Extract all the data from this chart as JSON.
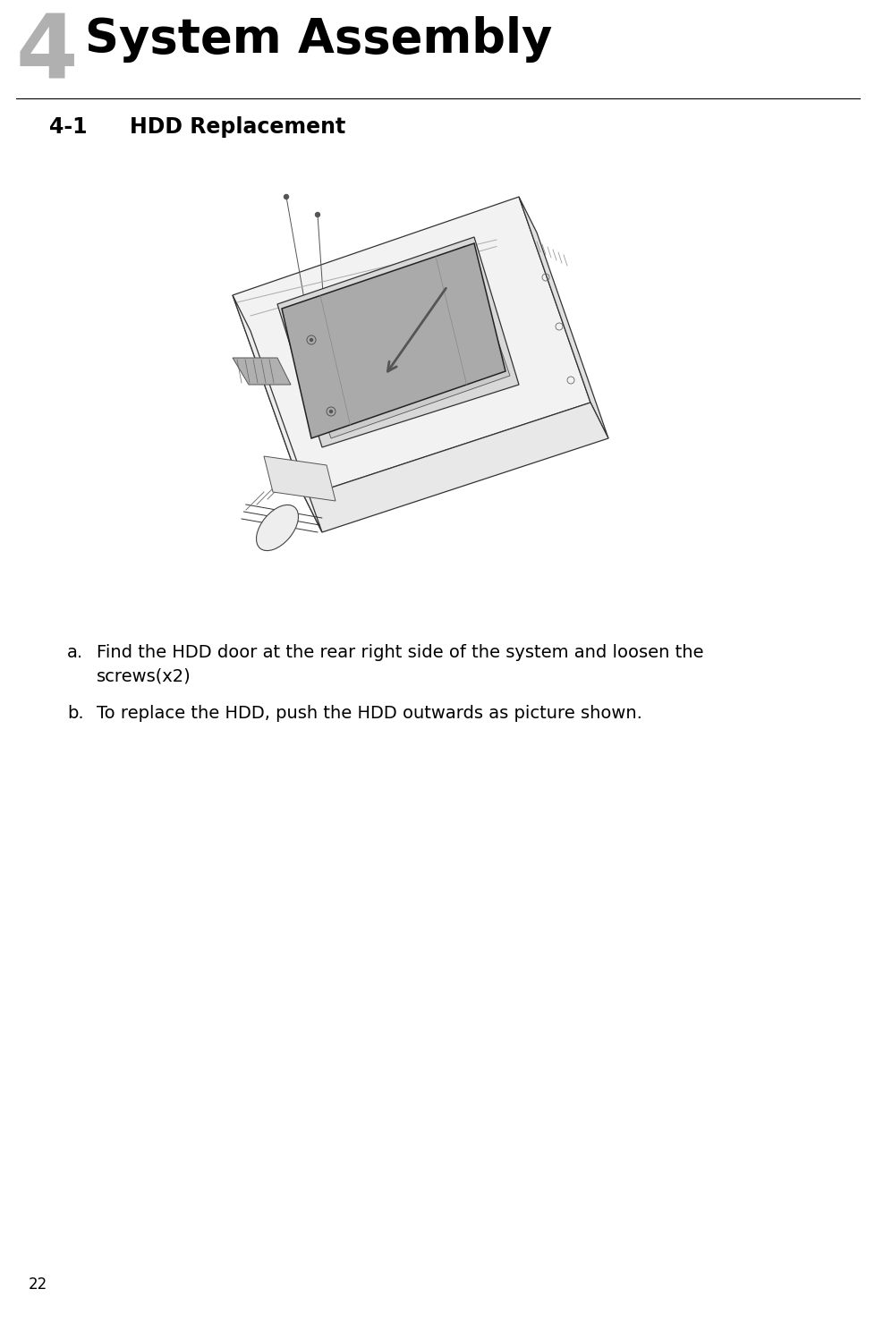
{
  "chapter_num": "4",
  "chapter_title": "System Assembly",
  "section_num": "4-1",
  "section_title": "HDD Replacement",
  "bullet_a": "Find the HDD door at the rear right side of the system and loosen the\nscrews(x2)",
  "bullet_b": "To replace the HDD, push the HDD outwards as picture shown.",
  "page_num": "22",
  "bg_color": "#ffffff",
  "chapter_num_color": "#b0b0b0",
  "chapter_title_color": "#000000",
  "section_color": "#000000",
  "text_color": "#000000",
  "line_color": "#333333",
  "hdd_fill": "#aaaaaa",
  "body_fill": "#f5f5f5",
  "dark_fill": "#888888"
}
